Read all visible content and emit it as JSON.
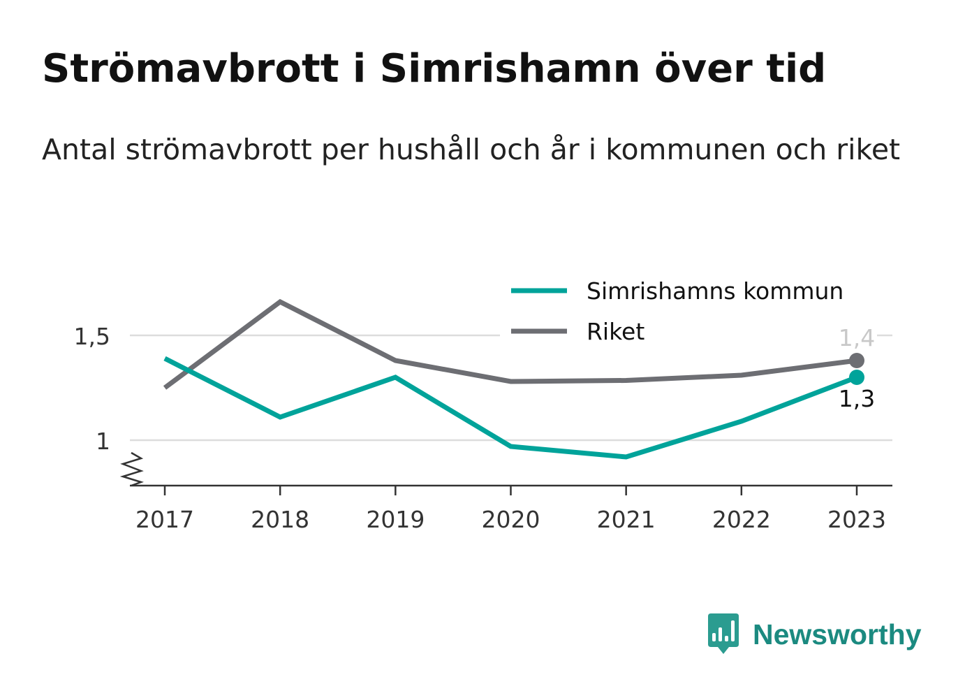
{
  "title": "Strömavbrott i Simrishamn över tid",
  "subtitle": "Antal strömavbrott per hushåll och år i kommunen och riket",
  "brand": {
    "name": "Newsworthy"
  },
  "chart_data": {
    "type": "line",
    "title": "Strömavbrott i Simrishamn över tid",
    "subtitle": "Antal strömavbrott per hushåll och år i kommunen och riket",
    "x": [
      "2017",
      "2018",
      "2019",
      "2020",
      "2021",
      "2022",
      "2023"
    ],
    "series": [
      {
        "name": "Simrishamns kommun",
        "color": "#00a39a",
        "values": [
          1.39,
          1.11,
          1.3,
          0.97,
          0.92,
          1.09,
          1.3
        ]
      },
      {
        "name": "Riket",
        "color": "#6d6e73",
        "values": [
          1.25,
          1.66,
          1.38,
          1.28,
          1.285,
          1.31,
          1.38
        ]
      }
    ],
    "y_ticks": [
      {
        "value": 1,
        "label": "1"
      },
      {
        "value": 1.5,
        "label": "1,5"
      }
    ],
    "end_labels": [
      "1,3",
      "1,4"
    ],
    "ylim": [
      0.78,
      1.72
    ],
    "axis_break": true,
    "grid": true,
    "legend_position": "top-right"
  }
}
